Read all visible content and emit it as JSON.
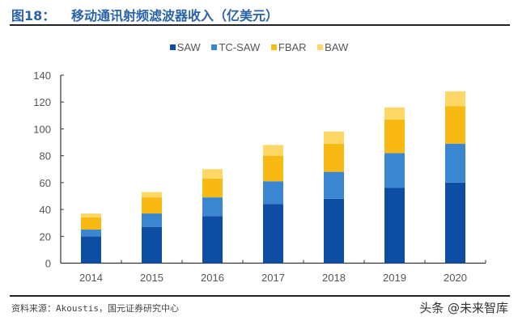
{
  "header": {
    "figure_number": "图18：",
    "title": "移动通讯射频滤波器收入（亿美元）"
  },
  "footer": {
    "source": "资料来源：Akoustis，国元证券研究中心",
    "watermark": "头条 @未来智库"
  },
  "chart_data": {
    "type": "bar",
    "stacked": true,
    "categories": [
      "2014",
      "2015",
      "2016",
      "2017",
      "2018",
      "2019",
      "2020"
    ],
    "series": [
      {
        "name": "SAW",
        "color": "#0d4da3",
        "values": [
          20,
          27,
          35,
          44,
          48,
          56,
          60
        ]
      },
      {
        "name": "TC-SAW",
        "color": "#3b86d0",
        "values": [
          5,
          10,
          14,
          17,
          20,
          26,
          29
        ]
      },
      {
        "name": "FBAR",
        "color": "#f8b912",
        "values": [
          9,
          12,
          14,
          19,
          21,
          25,
          28
        ]
      },
      {
        "name": "BAW",
        "color": "#fdd866",
        "values": [
          3,
          4,
          7,
          8,
          9,
          9,
          11
        ]
      }
    ],
    "ylim": [
      0,
      140
    ],
    "yticks": [
      "0",
      "20",
      "40",
      "60",
      "80",
      "100",
      "120",
      "140"
    ],
    "legend_position": "top",
    "grid": false
  }
}
